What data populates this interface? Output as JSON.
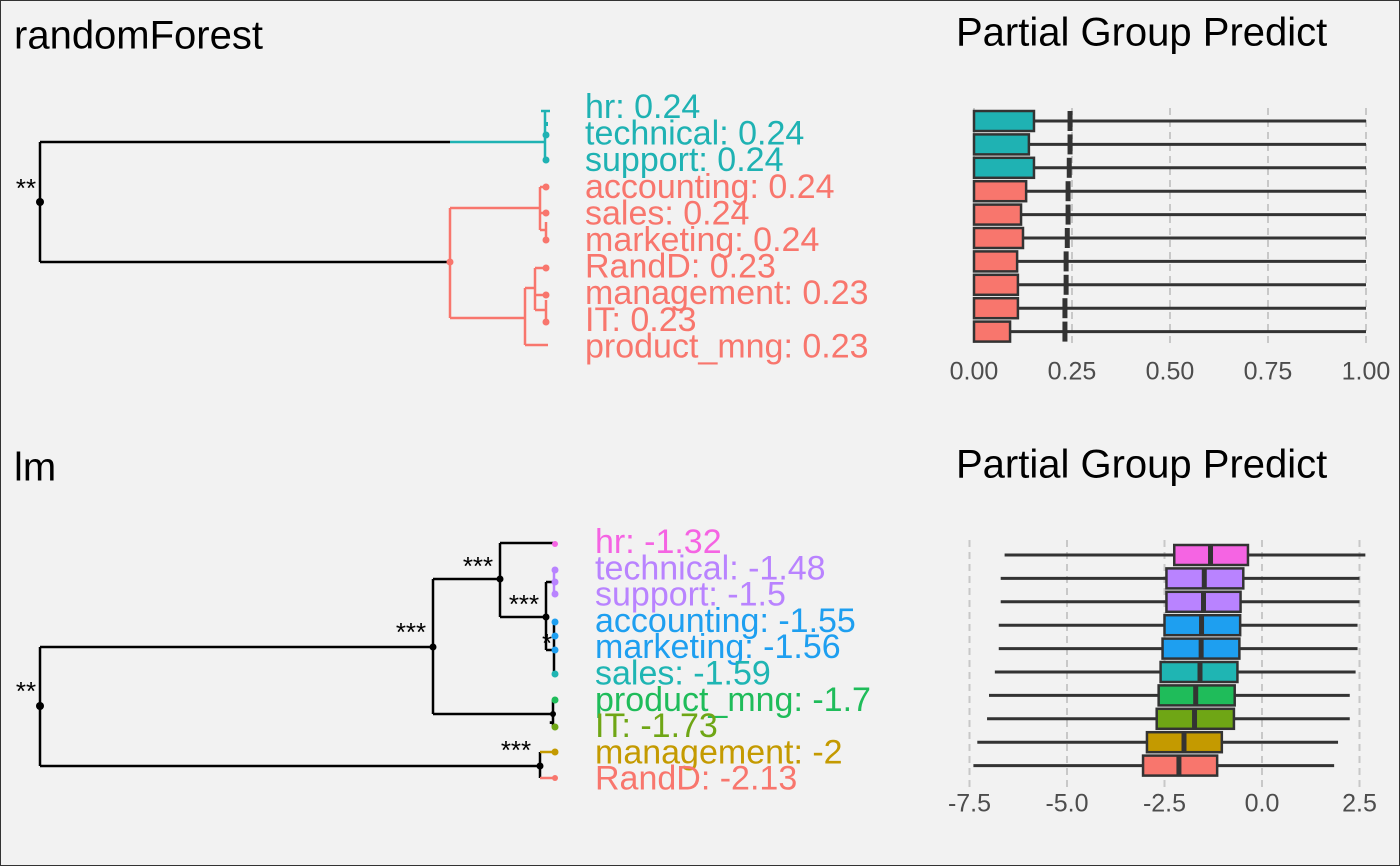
{
  "chart_data": [
    {
      "type": "dendrogram",
      "title": "randomForest",
      "values": [
        0.24,
        0.24,
        0.24,
        0.24,
        0.24,
        0.24,
        0.23,
        0.23,
        0.23,
        0.23
      ],
      "value_labels": [
        "hr: 0.24",
        "technical: 0.24",
        "support: 0.24",
        "accounting: 0.24",
        "sales: 0.24",
        "marketing: 0.24",
        "RandD: 0.23",
        "management: 0.23",
        "IT: 0.23",
        "product_mng: 0.23"
      ],
      "colors": [
        "#1fb2b3",
        "#1fb2b3",
        "#1fb2b3",
        "#f8766d",
        "#f8766d",
        "#f8766d",
        "#f8766d",
        "#f8766d",
        "#f8766d",
        "#f8766d"
      ],
      "annotations": [
        "**"
      ]
    },
    {
      "type": "box",
      "title": "Partial Group Predict",
      "xlim": [
        0,
        1
      ],
      "xticks": [
        {
          "value": 0,
          "label": "0.00"
        },
        {
          "value": 0.25,
          "label": "0.25"
        },
        {
          "value": 0.5,
          "label": "0.50"
        },
        {
          "value": 0.75,
          "label": "0.75"
        },
        {
          "value": 1,
          "label": "1.00"
        }
      ],
      "grid": true,
      "whislo": [
        0,
        0,
        0,
        0,
        0,
        0,
        0,
        0,
        0,
        0
      ],
      "q1": [
        0,
        0,
        0,
        0,
        0,
        0,
        0,
        0,
        0,
        0
      ],
      "med": [
        0.245,
        0.245,
        0.243,
        0.24,
        0.24,
        0.238,
        0.235,
        0.235,
        0.232,
        0.232
      ],
      "q3": [
        0.153,
        0.14,
        0.153,
        0.133,
        0.12,
        0.125,
        0.11,
        0.112,
        0.112,
        0.092
      ],
      "whishi": [
        1,
        1,
        1,
        1,
        1,
        1,
        1,
        1,
        1,
        1
      ],
      "colors": [
        "#1fb2b3",
        "#1fb2b3",
        "#1fb2b3",
        "#f8766d",
        "#f8766d",
        "#f8766d",
        "#f8766d",
        "#f8766d",
        "#f8766d",
        "#f8766d"
      ]
    },
    {
      "type": "dendrogram",
      "title": "lm",
      "values": [
        -1.32,
        -1.48,
        -1.5,
        -1.55,
        -1.56,
        -1.59,
        -1.7,
        -1.73,
        -2,
        -2.13
      ],
      "value_labels": [
        "hr: -1.32",
        "technical: -1.48",
        "support: -1.5",
        "accounting: -1.55",
        "marketing: -1.56",
        "sales: -1.59",
        "product_mng: -1.7",
        "IT: -1.73",
        "management: -2",
        "RandD: -2.13"
      ],
      "colors": [
        "#f564e3",
        "#b983ff",
        "#b983ff",
        "#1e9ff0",
        "#1e9ff0",
        "#1fb5b3",
        "#1fbc5a",
        "#6fa615",
        "#c49a00",
        "#f8766d"
      ],
      "annotations": [
        "**",
        "***",
        "***",
        "***",
        "*",
        ".",
        "***"
      ]
    },
    {
      "type": "box",
      "title": "Partial Group Predict",
      "xlim": [
        -7.5,
        2.5
      ],
      "xticks": [
        -7.5,
        {
          "value": -5,
          "label": "-5.0"
        },
        -2.5,
        {
          "value": 0,
          "label": "0.0"
        },
        2.5
      ],
      "grid": true,
      "whislo": [
        -6.6,
        -6.7,
        -6.7,
        -6.75,
        -6.75,
        -6.85,
        -7,
        -7.05,
        -7.3,
        -7.4
      ],
      "q1": [
        -2.25,
        -2.45,
        -2.45,
        -2.5,
        -2.55,
        -2.6,
        -2.65,
        -2.7,
        -2.95,
        -3.05
      ],
      "med": [
        -1.32,
        -1.48,
        -1.5,
        -1.55,
        -1.56,
        -1.59,
        -1.7,
        -1.73,
        -2,
        -2.13
      ],
      "q3": [
        -0.36,
        -0.48,
        -0.55,
        -0.56,
        -0.58,
        -0.63,
        -0.7,
        -0.72,
        -1.03,
        -1.15
      ],
      "whishi": [
        2.65,
        2.5,
        2.5,
        2.45,
        2.45,
        2.4,
        2.25,
        2.25,
        1.95,
        1.85
      ],
      "colors": [
        "#f564e3",
        "#b983ff",
        "#b983ff",
        "#1e9ff0",
        "#1e9ff0",
        "#1fb5b3",
        "#1fbc5a",
        "#6fa615",
        "#c49a00",
        "#f8766d"
      ]
    }
  ]
}
